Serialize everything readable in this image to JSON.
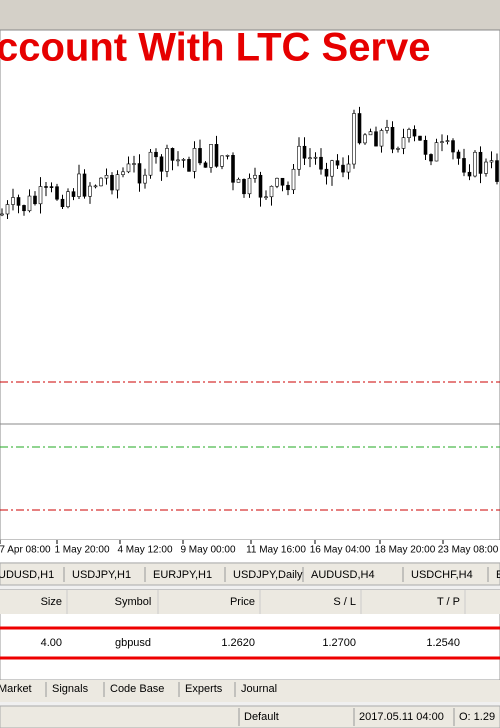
{
  "banner": {
    "title": "ccount With LTC Serve"
  },
  "chart": {
    "time_labels": [
      "7 Apr 08:00",
      "1 May 20:00",
      "4 May 12:00",
      "9 May 00:00",
      "11 May 16:00",
      "16 May 04:00",
      "18 May 20:00",
      "23 May 08:00"
    ]
  },
  "chart_tabs": [
    "UDUSD,H1",
    "USDJPY,H1",
    "EURJPY,H1",
    "USDJPY,Daily",
    "AUDUSD,H4",
    "USDCHF,H4",
    "E"
  ],
  "table": {
    "headers": [
      "Size",
      "Symbol",
      "Price",
      "S / L",
      "T / P"
    ],
    "rows": [
      [
        "4.00",
        "gbpusd",
        "1.2620",
        "1.2700",
        "1.2540"
      ]
    ]
  },
  "terminal_tabs": [
    "Market",
    "Signals",
    "Code Base",
    "Experts",
    "Journal"
  ],
  "status": [
    "Default",
    "2017.05.11 04:00",
    "O: 1.29"
  ]
}
